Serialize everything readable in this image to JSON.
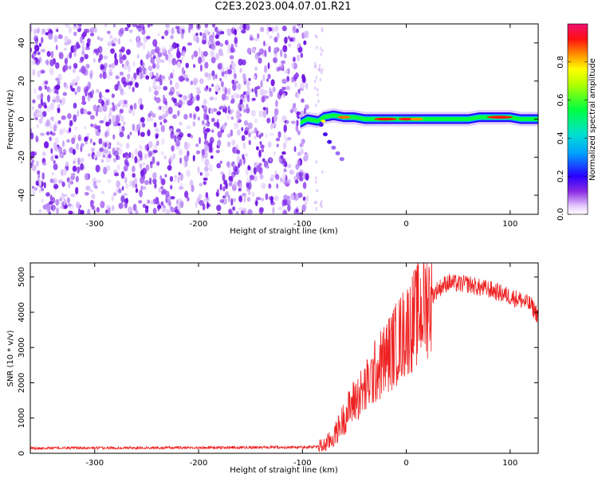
{
  "title": "C2E3.2023.004.07.01.R21",
  "chart_data": [
    {
      "type": "heatmap",
      "xlabel": "Height of straight line (km)",
      "ylabel": "Frequency (Hz)",
      "xlim": [
        -362,
        127
      ],
      "ylim": [
        -50,
        50
      ],
      "xticks": [
        -300,
        -200,
        -100,
        0,
        100
      ],
      "yticks": [
        -40,
        -20,
        0,
        20,
        40
      ],
      "noise_region_x": [
        -362,
        -100
      ],
      "signal_track": {
        "x": [
          -102,
          -95,
          -85,
          -80,
          -70,
          -60,
          -50,
          -40,
          -30,
          -20,
          -10,
          0,
          10,
          20,
          30,
          40,
          50,
          60,
          70,
          80,
          90,
          100,
          110,
          120,
          127
        ],
        "freq": [
          -2,
          0,
          -1,
          1,
          2,
          1,
          1,
          0,
          0,
          0,
          0,
          0,
          0,
          0,
          0,
          0,
          0,
          0,
          1,
          1,
          1,
          1,
          0,
          0,
          0
        ]
      },
      "colorbar": {
        "label": "Normalized spectral amplitude",
        "range": [
          0,
          1
        ],
        "ticks": [
          "0.0",
          "0.2",
          "0.4",
          "0.6",
          "0.8"
        ]
      }
    },
    {
      "type": "line",
      "xlabel": "Height of straight line (km)",
      "ylabel": "SNR (10 * v/v)",
      "xlim": [
        -362,
        127
      ],
      "ylim": [
        0,
        5400
      ],
      "xticks": [
        -300,
        -200,
        -100,
        0,
        100
      ],
      "yticks": [
        0,
        1000,
        2000,
        3000,
        4000,
        5000
      ],
      "color": "#ee2222",
      "series": [
        {
          "name": "SNR",
          "x": [
            -362,
            -300,
            -200,
            -100,
            -80,
            -70,
            -60,
            -50,
            -40,
            -30,
            -20,
            -10,
            0,
            10,
            20,
            30,
            40,
            50,
            60,
            70,
            80,
            90,
            100,
            110,
            120,
            127
          ],
          "y": [
            150,
            150,
            160,
            170,
            200,
            450,
            1000,
            1500,
            1800,
            2300,
            2700,
            3100,
            3500,
            3900,
            4300,
            4650,
            4850,
            4800,
            4800,
            4700,
            4650,
            4550,
            4450,
            4350,
            4200,
            3900
          ]
        }
      ]
    }
  ]
}
